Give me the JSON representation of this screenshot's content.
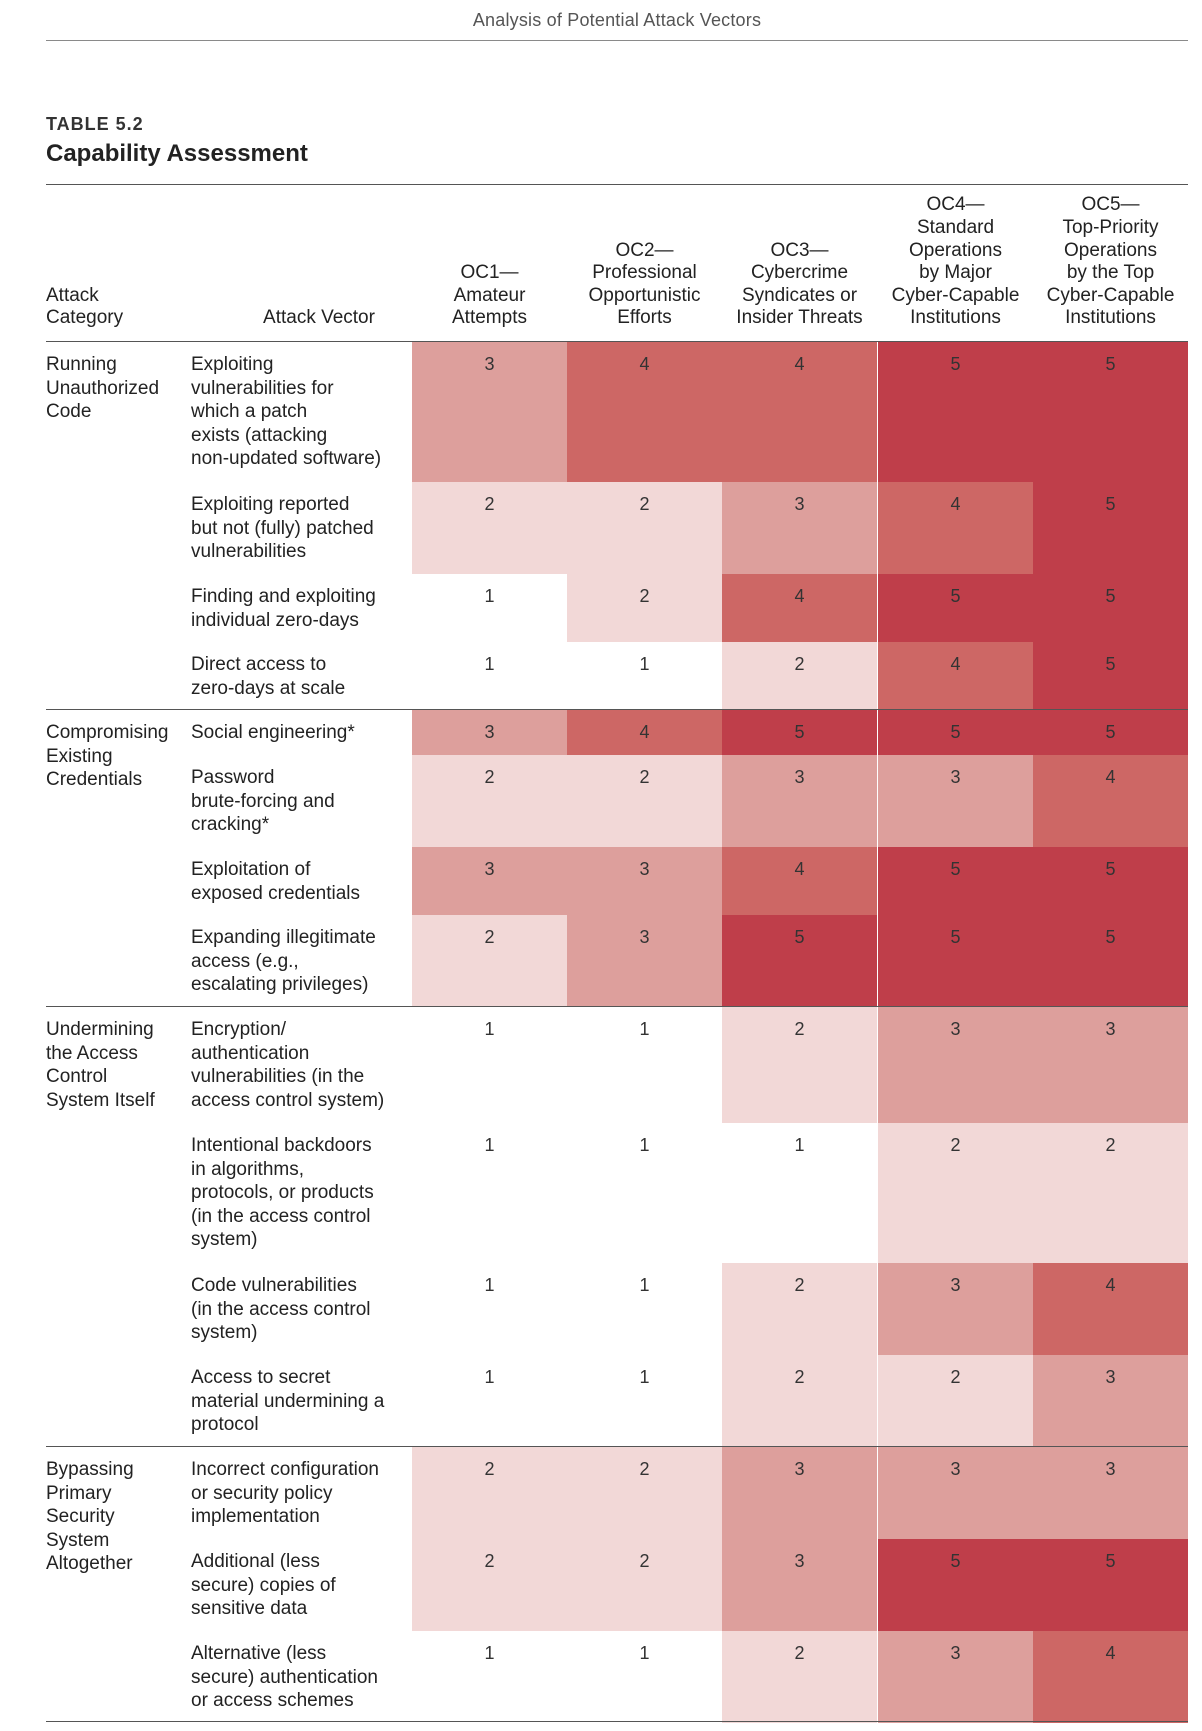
{
  "page": {
    "running_head": "Analysis of Potential Attack Vectors",
    "table_label": "TABLE 5.2",
    "table_title": "Capability Assessment"
  },
  "header": {
    "category": "Attack\nCategory",
    "vector": "Attack Vector",
    "oc": [
      "OC1—\nAmateur\nAttempts",
      "OC2—\nProfessional\nOpportunistic\nEfforts",
      "OC3—\nCybercrime\nSyndicates or\nInsider Threats",
      "OC4—\nStandard\nOperations\nby Major\nCyber-Capable\nInstitutions",
      "OC5—\nTop-Priority\nOperations\nby the Top\nCyber-Capable\nInstitutions"
    ]
  },
  "colors": {
    "1": "#ffffff",
    "2": "#f2d8d7",
    "3": "#dd9f9c",
    "4": "#cd6765",
    "5": "#bf3e4a"
  },
  "groups": [
    {
      "category": "Running\nUnauthorized\nCode",
      "rows": [
        {
          "vector": "Exploiting\nvulnerabilities for\nwhich a patch\nexists (attacking\nnon-updated software)",
          "scores": [
            "3",
            "4",
            "4",
            "5",
            "5"
          ]
        },
        {
          "vector": "Exploiting reported\nbut not (fully) patched\nvulnerabilities",
          "scores": [
            "2",
            "2",
            "3",
            "4",
            "5"
          ]
        },
        {
          "vector": "Finding and exploiting\nindividual zero-days",
          "scores": [
            "1",
            "2",
            "4",
            "5",
            "5"
          ]
        },
        {
          "vector": "Direct access to\nzero-days at scale",
          "scores": [
            "1",
            "1",
            "2",
            "4",
            "5"
          ]
        }
      ]
    },
    {
      "category": "Compromising\nExisting\nCredentials",
      "rows": [
        {
          "vector": "Social engineering*",
          "scores": [
            "3",
            "4",
            "5",
            "5",
            "5"
          ]
        },
        {
          "vector": "Password\nbrute-forcing and\ncracking*",
          "scores": [
            "2",
            "2",
            "3",
            "3",
            "4"
          ]
        },
        {
          "vector": "Exploitation of\nexposed credentials",
          "scores": [
            "3",
            "3",
            "4",
            "5",
            "5"
          ]
        },
        {
          "vector": "Expanding illegitimate\naccess (e.g.,\nescalating privileges)",
          "scores": [
            "2",
            "3",
            "5",
            "5",
            "5"
          ]
        }
      ]
    },
    {
      "category": "Undermining\nthe Access\nControl\nSystem Itself",
      "rows": [
        {
          "vector": "Encryption/\nauthentication\nvulnerabilities (in the\naccess control system)",
          "scores": [
            "1",
            "1",
            "2",
            "3",
            "3"
          ]
        },
        {
          "vector": "Intentional backdoors\nin algorithms,\nprotocols, or products\n(in the access control\nsystem)",
          "scores": [
            "1",
            "1",
            "1",
            "2",
            "2"
          ]
        },
        {
          "vector": "Code vulnerabilities\n(in the access control\nsystem)",
          "scores": [
            "1",
            "1",
            "2",
            "3",
            "4"
          ]
        },
        {
          "vector": "Access to secret\nmaterial undermining a\nprotocol",
          "scores": [
            "1",
            "1",
            "2",
            "2",
            "3"
          ]
        }
      ]
    },
    {
      "category": "Bypassing\nPrimary\nSecurity\nSystem\nAltogether",
      "rows": [
        {
          "vector": "Incorrect configuration\nor security policy\nimplementation",
          "scores": [
            "2",
            "2",
            "3",
            "3",
            "3"
          ]
        },
        {
          "vector": "Additional (less\nsecure) copies of\nsensitive data",
          "scores": [
            "2",
            "2",
            "3",
            "5",
            "5"
          ]
        },
        {
          "vector": "Alternative (less\nsecure) authentication\nor access schemes",
          "scores": [
            "1",
            "1",
            "2",
            "3",
            "4"
          ]
        }
      ]
    }
  ]
}
